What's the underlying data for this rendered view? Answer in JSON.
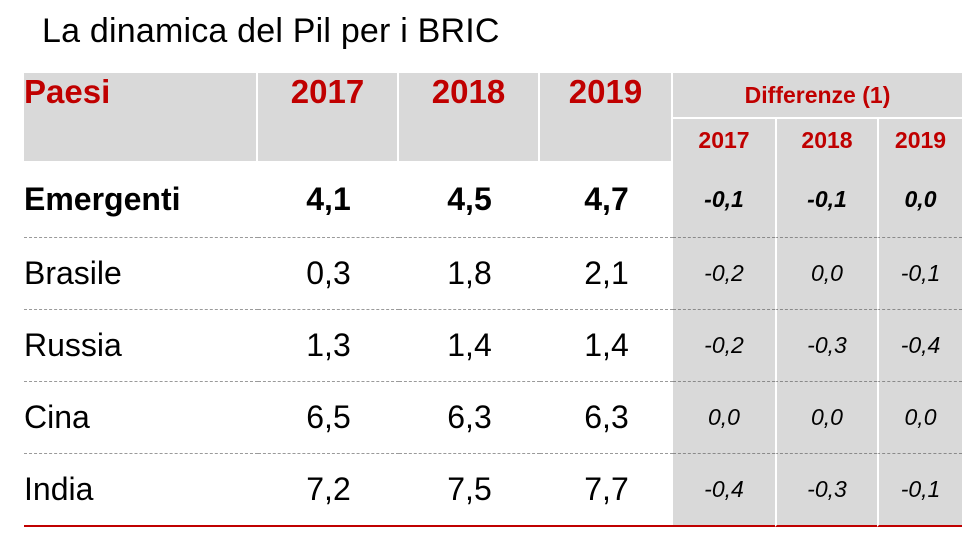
{
  "title": "La dinamica del Pil per i BRIC",
  "table": {
    "header": {
      "paesi": "Paesi",
      "years": [
        "2017",
        "2018",
        "2019"
      ],
      "diff_label": "Differenze (1)",
      "diff_years": [
        "2017",
        "2018",
        "2019"
      ]
    },
    "rows": [
      {
        "name": "Emergenti",
        "bold": true,
        "values": [
          "4,1",
          "4,5",
          "4,7"
        ],
        "diffs": [
          "-0,1",
          "-0,1",
          "0,0"
        ]
      },
      {
        "name": "Brasile",
        "bold": false,
        "values": [
          "0,3",
          "1,8",
          "2,1"
        ],
        "diffs": [
          "-0,2",
          "0,0",
          "-0,1"
        ]
      },
      {
        "name": "Russia",
        "bold": false,
        "values": [
          "1,3",
          "1,4",
          "1,4"
        ],
        "diffs": [
          "-0,2",
          "-0,3",
          "-0,4"
        ]
      },
      {
        "name": "Cina",
        "bold": false,
        "values": [
          "6,5",
          "6,3",
          "6,3"
        ],
        "diffs": [
          "0,0",
          "0,0",
          "0,0"
        ]
      },
      {
        "name": "India",
        "bold": false,
        "values": [
          "7,2",
          "7,5",
          "7,7"
        ],
        "diffs": [
          "-0,4",
          "-0,3",
          "-0,1"
        ]
      }
    ]
  },
  "colors": {
    "header_text": "#c00000",
    "header_bg": "#d9d9d9",
    "diff_bg": "#d9d9d9",
    "bottom_rule": "#c00000"
  }
}
